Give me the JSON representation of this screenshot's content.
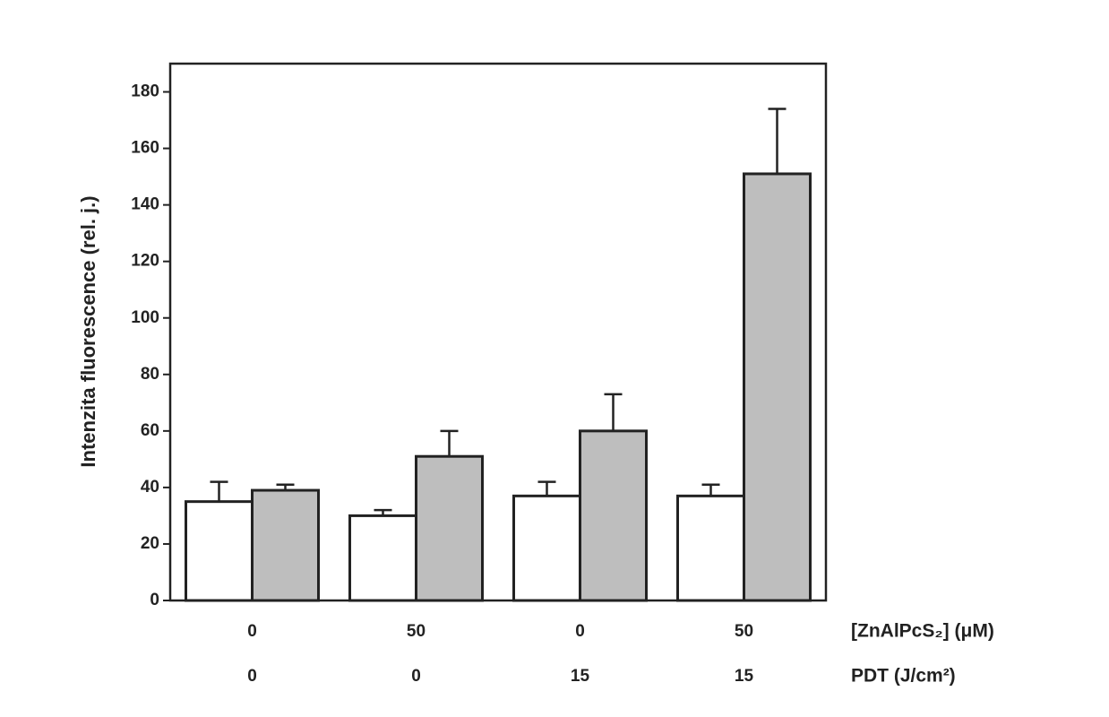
{
  "chart_data": {
    "type": "bar",
    "y_label": "Intenzita fluorescence (rel. j.)",
    "category_labels": [
      "[ZnAlPcS₂] (μM)",
      "PDT (J/cm²)"
    ],
    "categories": [
      "0",
      "50",
      "0",
      "50"
    ],
    "categories2": [
      "0",
      "0",
      "15",
      "15"
    ],
    "series": [
      {
        "color": "#ffffff",
        "values": [
          35,
          30,
          37,
          37
        ],
        "errors": [
          7,
          2,
          5,
          4
        ]
      },
      {
        "color": "#bebebe",
        "values": [
          39,
          51,
          60,
          151
        ],
        "errors": [
          2,
          9,
          13,
          23
        ]
      }
    ],
    "ylim": [
      0,
      190
    ],
    "yticks": [
      0,
      20,
      40,
      60,
      80,
      100,
      120,
      140,
      160,
      180
    ]
  }
}
